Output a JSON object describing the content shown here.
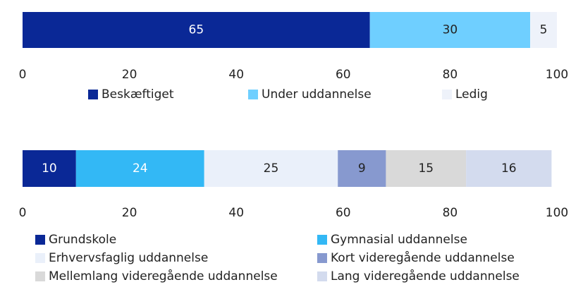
{
  "chart_data": [
    {
      "type": "stacked-bar",
      "series": [
        {
          "name": "Beskæftiget",
          "color": "#0a2896",
          "values": [
            65
          ]
        },
        {
          "name": "Under uddannelse",
          "color": "#6fcfff",
          "values": [
            30
          ]
        },
        {
          "name": "Ledig",
          "color": "#eef2fa",
          "values": [
            5
          ]
        }
      ],
      "xlim": [
        0,
        100
      ],
      "xticks": [
        0,
        20,
        40,
        60,
        80,
        100
      ]
    },
    {
      "type": "stacked-bar",
      "series": [
        {
          "name": "Grundskole",
          "color": "#0a2896",
          "values": [
            10
          ]
        },
        {
          "name": "Gymnasial uddannelse",
          "color": "#33b8f5",
          "values": [
            24
          ]
        },
        {
          "name": "Erhvervsfaglig uddannelse",
          "color": "#eaf0fa",
          "values": [
            25
          ]
        },
        {
          "name": "Kort videregående uddannelse",
          "color": "#8799cf",
          "values": [
            9
          ]
        },
        {
          "name": "Mellemlang videregående uddannelse",
          "color": "#d9d9d9",
          "values": [
            15
          ]
        },
        {
          "name": "Lang videregående uddannelse",
          "color": "#d3dbee",
          "values": [
            16
          ]
        }
      ],
      "xlim": [
        0,
        100
      ],
      "xticks": [
        0,
        20,
        40,
        60,
        80,
        100
      ]
    }
  ]
}
